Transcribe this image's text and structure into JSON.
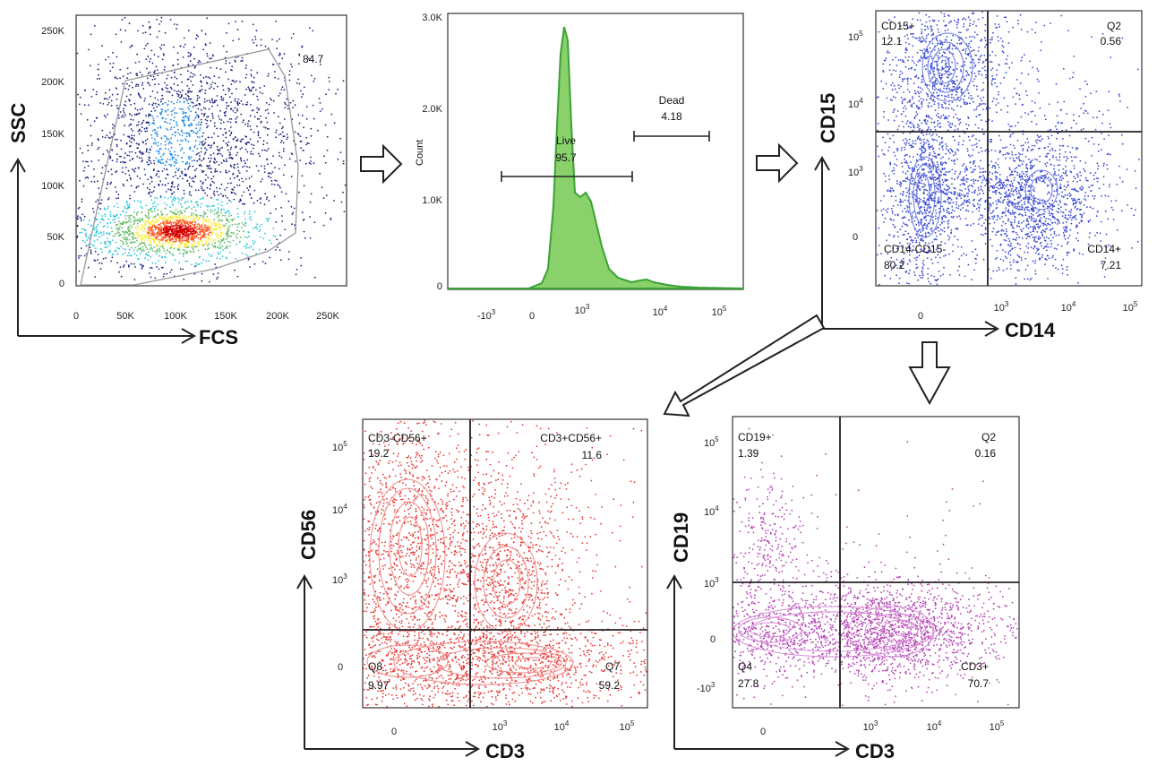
{
  "panels": {
    "scatter": {
      "ylabel": "SSC",
      "xlabel": "FCS",
      "gate_value": "84.7",
      "y_ticks": [
        "250K",
        "200K",
        "150K",
        "100K",
        "50K",
        "0"
      ],
      "x_ticks": [
        "0",
        "50K",
        "100K",
        "150K",
        "200K",
        "250K"
      ]
    },
    "histogram": {
      "ylabel": "Count",
      "y_ticks": [
        "3.0K",
        "2.0K",
        "1.0K",
        "0"
      ],
      "live_label": "Live",
      "live_value": "95.7",
      "dead_label": "Dead",
      "dead_value": "4.18"
    },
    "cd14_cd15": {
      "ylabel": "CD15",
      "xlabel": "CD14",
      "q_ul_name": "CD15+",
      "q_ul_value": "12.1",
      "q_ur_name": "Q2",
      "q_ur_value": "0.56",
      "q_ll_name": "CD14-CD15-",
      "q_ll_value": "80.2",
      "q_lr_name": "CD14+",
      "q_lr_value": "7.21"
    },
    "cd3_cd56": {
      "ylabel": "CD56",
      "xlabel": "CD3",
      "q_ul_name": "CD3-CD56+",
      "q_ul_value": "19.2",
      "q_ur_name": "CD3+CD56+",
      "q_ur_value": "11.6",
      "q_ll_name": "Q8",
      "q_ll_value": "9.97",
      "q_lr_name": "Q7",
      "q_lr_value": "59.2"
    },
    "cd3_cd19": {
      "ylabel": "CD19",
      "xlabel": "CD3",
      "q_ul_name": "CD19+",
      "q_ul_value": "1.39",
      "q_ur_name": "Q2",
      "q_ur_value": "0.16",
      "q_ll_name": "Q4",
      "q_ll_value": "27.8",
      "q_lr_name": "CD3+",
      "q_lr_value": "70.7"
    }
  },
  "colors": {
    "scatter_density": [
      "#1a237e",
      "#1e88e5",
      "#26c6da",
      "#66bb6a",
      "#ffeb3b",
      "#ff5722",
      "#d50000"
    ],
    "histogram_fill": "#8bd16b",
    "histogram_line": "#3aa335",
    "cd14_cd15_dots": "#3a4ad1",
    "cd3_cd56_dots": "#e53935",
    "cd3_cd19_dots": "#b342b3"
  }
}
